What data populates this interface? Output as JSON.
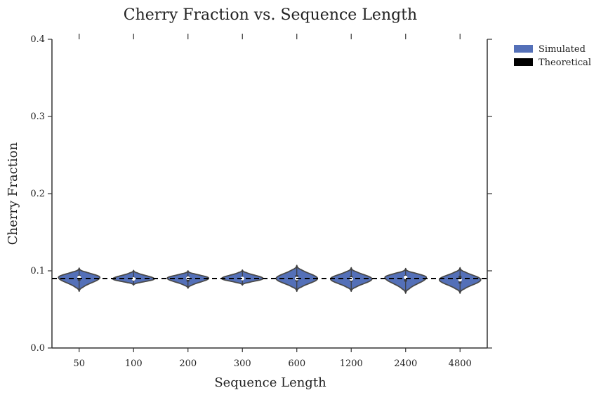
{
  "chart_data": {
    "type": "violin",
    "title": "Cherry Fraction vs. Sequence Length",
    "xlabel": "Sequence Length",
    "ylabel": "Cherry Fraction",
    "categories": [
      "50",
      "100",
      "200",
      "300",
      "600",
      "1200",
      "2400",
      "4800"
    ],
    "ylim": [
      0.0,
      0.4
    ],
    "yticks": [
      0.0,
      0.1,
      0.2,
      0.3,
      0.4
    ],
    "ytick_labels": [
      "0.0",
      "0.1",
      "0.2",
      "0.3",
      "0.4"
    ],
    "grid": false,
    "legend_position": "outside-top-right",
    "series": [
      {
        "name": "Simulated",
        "color": "#5470b8",
        "distributions": [
          {
            "category": "50",
            "min": 0.0735,
            "max": 0.1035,
            "median": 0.0915,
            "q1": 0.087,
            "q3": 0.0945
          },
          {
            "category": "100",
            "min": 0.0815,
            "max": 0.1005,
            "median": 0.0895,
            "q1": 0.087,
            "q3": 0.092
          },
          {
            "category": "200",
            "min": 0.0775,
            "max": 0.1,
            "median": 0.0905,
            "q1": 0.086,
            "q3": 0.0935
          },
          {
            "category": "300",
            "min": 0.0815,
            "max": 0.101,
            "median": 0.09,
            "q1": 0.088,
            "q3": 0.092
          },
          {
            "category": "600",
            "min": 0.0735,
            "max": 0.107,
            "median": 0.09,
            "q1": 0.086,
            "q3": 0.0945
          },
          {
            "category": "1200",
            "min": 0.0735,
            "max": 0.104,
            "median": 0.0895,
            "q1": 0.086,
            "q3": 0.0935
          },
          {
            "category": "2400",
            "min": 0.071,
            "max": 0.103,
            "median": 0.0915,
            "q1": 0.086,
            "q3": 0.0945
          },
          {
            "category": "4800",
            "min": 0.071,
            "max": 0.104,
            "median": 0.0885,
            "q1": 0.0835,
            "q3": 0.0935
          }
        ]
      },
      {
        "name": "Theoretical",
        "color": "#000000",
        "style": "dashed",
        "value": 0.09
      }
    ]
  }
}
